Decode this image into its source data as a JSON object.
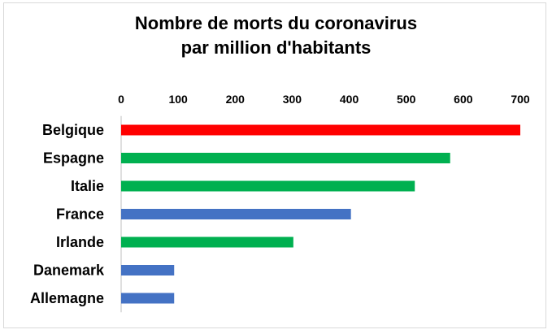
{
  "chart_data": {
    "type": "bar",
    "orientation": "horizontal",
    "title_line1": "Nombre de morts du coronavirus",
    "title_line2": "par million d'habitants",
    "categories": [
      "Belgique",
      "Espagne",
      "Italie",
      "France",
      "Irlande",
      "Danemark",
      "Allemagne"
    ],
    "values": [
      700,
      577,
      515,
      403,
      302,
      93,
      93
    ],
    "bar_colors": [
      "#ff0000",
      "#00b050",
      "#00b050",
      "#4472c4",
      "#00b050",
      "#4472c4",
      "#4472c4"
    ],
    "xlim": [
      0,
      700
    ],
    "xticks": [
      "0",
      "100",
      "200",
      "300",
      "400",
      "500",
      "600",
      "700"
    ],
    "axis_position": "top",
    "grid": false,
    "legend": "none"
  }
}
